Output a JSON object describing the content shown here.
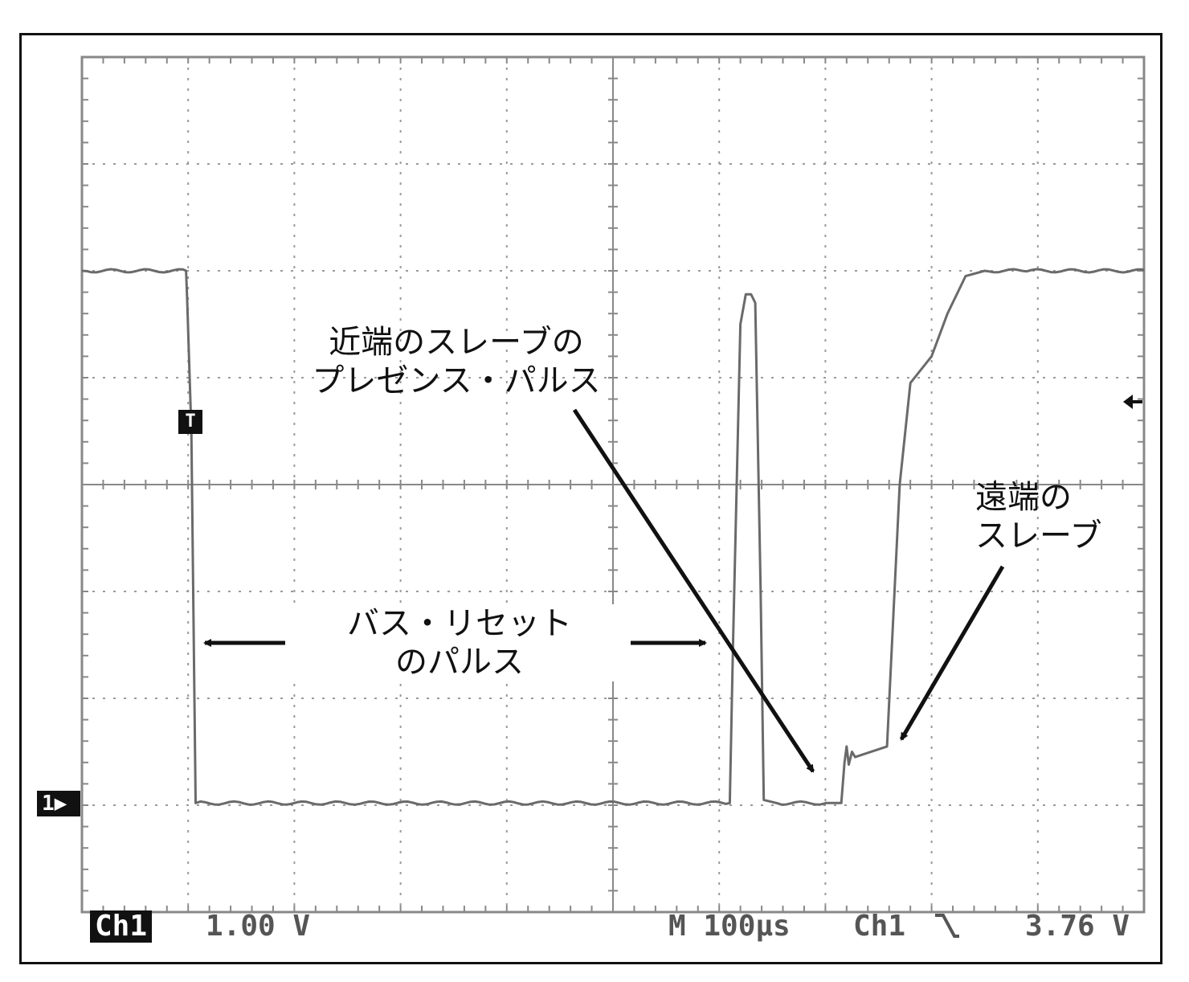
{
  "chart_data": {
    "type": "line",
    "title": "",
    "xlabel": "",
    "ylabel": "",
    "x_divisions": 10,
    "y_divisions": 8,
    "grid": true,
    "volts_per_div": 1.0,
    "time_per_div_us": 100,
    "ground_division_from_top": 7,
    "trigger_level_division_from_top": 3.3,
    "series": [
      {
        "x_us": [
          0,
          98,
          99,
          103,
          107,
          610,
          613,
          620,
          625,
          630,
          634,
          639,
          642,
          654,
          700,
          715,
          718,
          720,
          722,
          725,
          728,
          758,
          770,
          780,
          800,
          815,
          832,
          850,
          885,
          1000
        ],
        "y_volts": [
          5.0,
          5.0,
          4.75,
          3.5,
          0.02,
          0.02,
          1.5,
          4.5,
          4.78,
          4.78,
          4.7,
          2.0,
          0.05,
          0.02,
          0.02,
          0.02,
          0.4,
          0.55,
          0.38,
          0.5,
          0.45,
          0.55,
          3.0,
          3.95,
          4.2,
          4.6,
          4.95,
          5.0,
          5.0,
          5.0
        ]
      }
    ]
  },
  "annotations": {
    "near_slave": [
      "近端のスレーブの",
      "プレゼンス・パルス"
    ],
    "bus_reset": [
      "バス・リセット",
      "のパルス"
    ],
    "far_slave": [
      "遠端の",
      "スレーブ"
    ]
  },
  "status_bar": {
    "channel_badge": "Ch1",
    "volts_per_div": "1.00 V",
    "timebase": "M 100µs",
    "trigger_source": "Ch1",
    "trigger_slope_icon": "falling-edge-icon",
    "trigger_level": "3.76 V"
  },
  "markers": {
    "channel_ground": "1",
    "trigger_position": "T"
  },
  "colors": {
    "trace": "#6a6a6a",
    "grid": "#9a9a9a",
    "annotation": "#111111"
  }
}
